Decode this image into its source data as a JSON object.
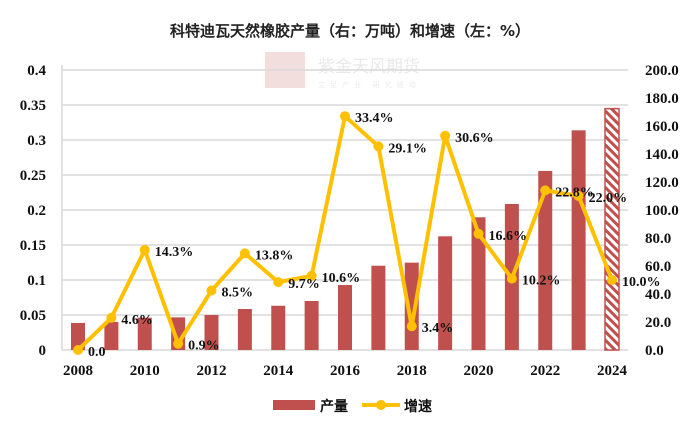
{
  "chart_data": {
    "type": "bar+line",
    "title": "科特迪瓦天然橡胶产量（右：万吨）和增速（左：%）",
    "categories": [
      "2008",
      "2009",
      "2010",
      "2011",
      "2012",
      "2013",
      "2014",
      "2015",
      "2016",
      "2017",
      "2018",
      "2019",
      "2020",
      "2021",
      "2022",
      "2023",
      "2024"
    ],
    "x_tick_labels": [
      "2008",
      "2010",
      "2012",
      "2014",
      "2016",
      "2018",
      "2020",
      "2022",
      "2024"
    ],
    "left_axis": {
      "ylim": [
        0,
        0.4
      ],
      "ticks": [
        "0",
        "0.05",
        "0.1",
        "0.15",
        "0.2",
        "0.25",
        "0.3",
        "0.35",
        "0.4"
      ]
    },
    "right_axis": {
      "ylim": [
        0,
        200
      ],
      "ticks": [
        "0.0",
        "20.0",
        "40.0",
        "60.0",
        "80.0",
        "100.0",
        "120.0",
        "140.0",
        "160.0",
        "180.0",
        "200.0"
      ]
    },
    "grid": true,
    "legend_position": "bottom",
    "series": [
      {
        "name": "产量",
        "type": "bar",
        "axis": "right",
        "color": "#C0504D",
        "values": [
          19.3,
          20.0,
          23.1,
          23.3,
          25.0,
          29.3,
          31.6,
          35.0,
          46.4,
          60.2,
          62.4,
          81.2,
          94.8,
          104.3,
          127.9,
          156.9,
          172.4
        ],
        "hatched_last": true
      },
      {
        "name": "增速",
        "type": "line",
        "axis": "left",
        "color": "#FFC000",
        "values": [
          0.0,
          0.046,
          0.143,
          0.009,
          0.085,
          0.138,
          0.097,
          0.106,
          0.334,
          0.291,
          0.034,
          0.306,
          0.166,
          0.102,
          0.228,
          0.22,
          0.1
        ],
        "labels": [
          "0.0",
          "4.6%",
          "14.3%",
          "0.9%",
          "8.5%",
          "13.8%",
          "9.7%",
          "10.6%",
          "33.4%",
          "29.1%",
          "3.4%",
          "30.6%",
          "16.6%",
          "10.2%",
          "22.8%",
          "22.0%",
          "10.0%"
        ]
      }
    ]
  },
  "watermark": {
    "name": "紫金天风期货",
    "slogan": "立足产业 研究驱动",
    "seal": "紫天金风"
  }
}
